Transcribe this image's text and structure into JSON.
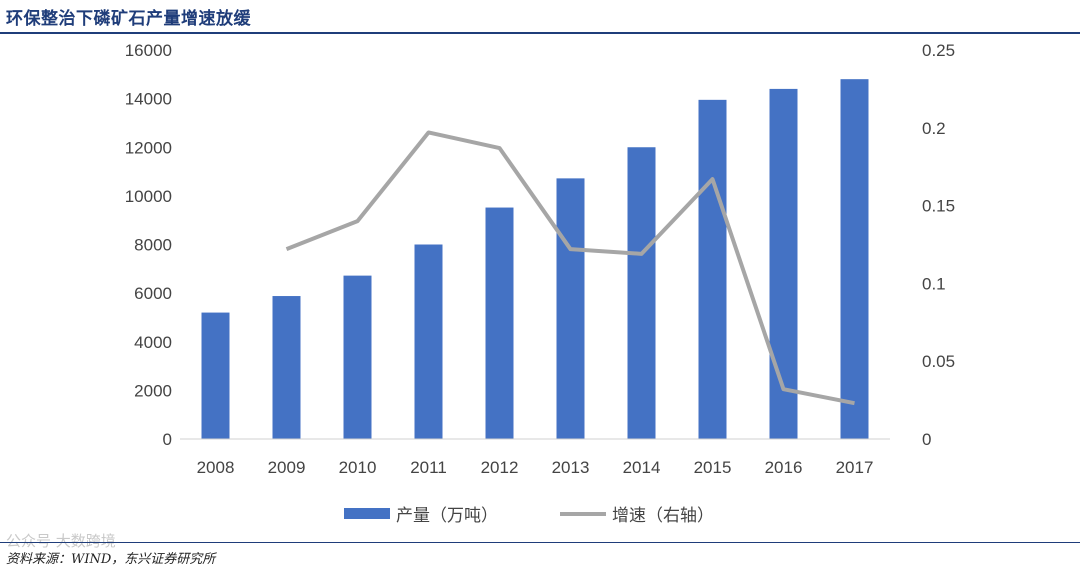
{
  "page": {
    "title": "环保整治下磷矿石产量增速放缓",
    "source": "资料来源：WIND，东兴证券研究所",
    "watermark": "公众号 大数跨境"
  },
  "chart_data": {
    "type": "bar+line",
    "title": "",
    "categories": [
      "2008",
      "2009",
      "2010",
      "2011",
      "2012",
      "2013",
      "2014",
      "2015",
      "2016",
      "2017"
    ],
    "series": [
      {
        "name": "产量（万吨）",
        "type": "bar",
        "axis": "left",
        "color": "#4472c4",
        "values": [
          5200,
          5880,
          6720,
          8000,
          9520,
          10720,
          12000,
          13950,
          14400,
          14800
        ]
      },
      {
        "name": "增速（右轴）",
        "type": "line",
        "axis": "right",
        "color": "#a6a6a6",
        "values": [
          null,
          0.122,
          0.14,
          0.197,
          0.187,
          0.122,
          0.119,
          0.167,
          0.032,
          0.023
        ]
      }
    ],
    "y_left": {
      "min": 0,
      "max": 16000,
      "step": 2000,
      "ticks": [
        "0",
        "2000",
        "4000",
        "6000",
        "8000",
        "10000",
        "12000",
        "14000",
        "16000"
      ]
    },
    "y_right": {
      "min": 0,
      "max": 0.25,
      "step": 0.05,
      "ticks": [
        "0",
        "0.05",
        "0.1",
        "0.15",
        "0.2",
        "0.25"
      ]
    },
    "grid": false,
    "legend_position": "bottom"
  }
}
